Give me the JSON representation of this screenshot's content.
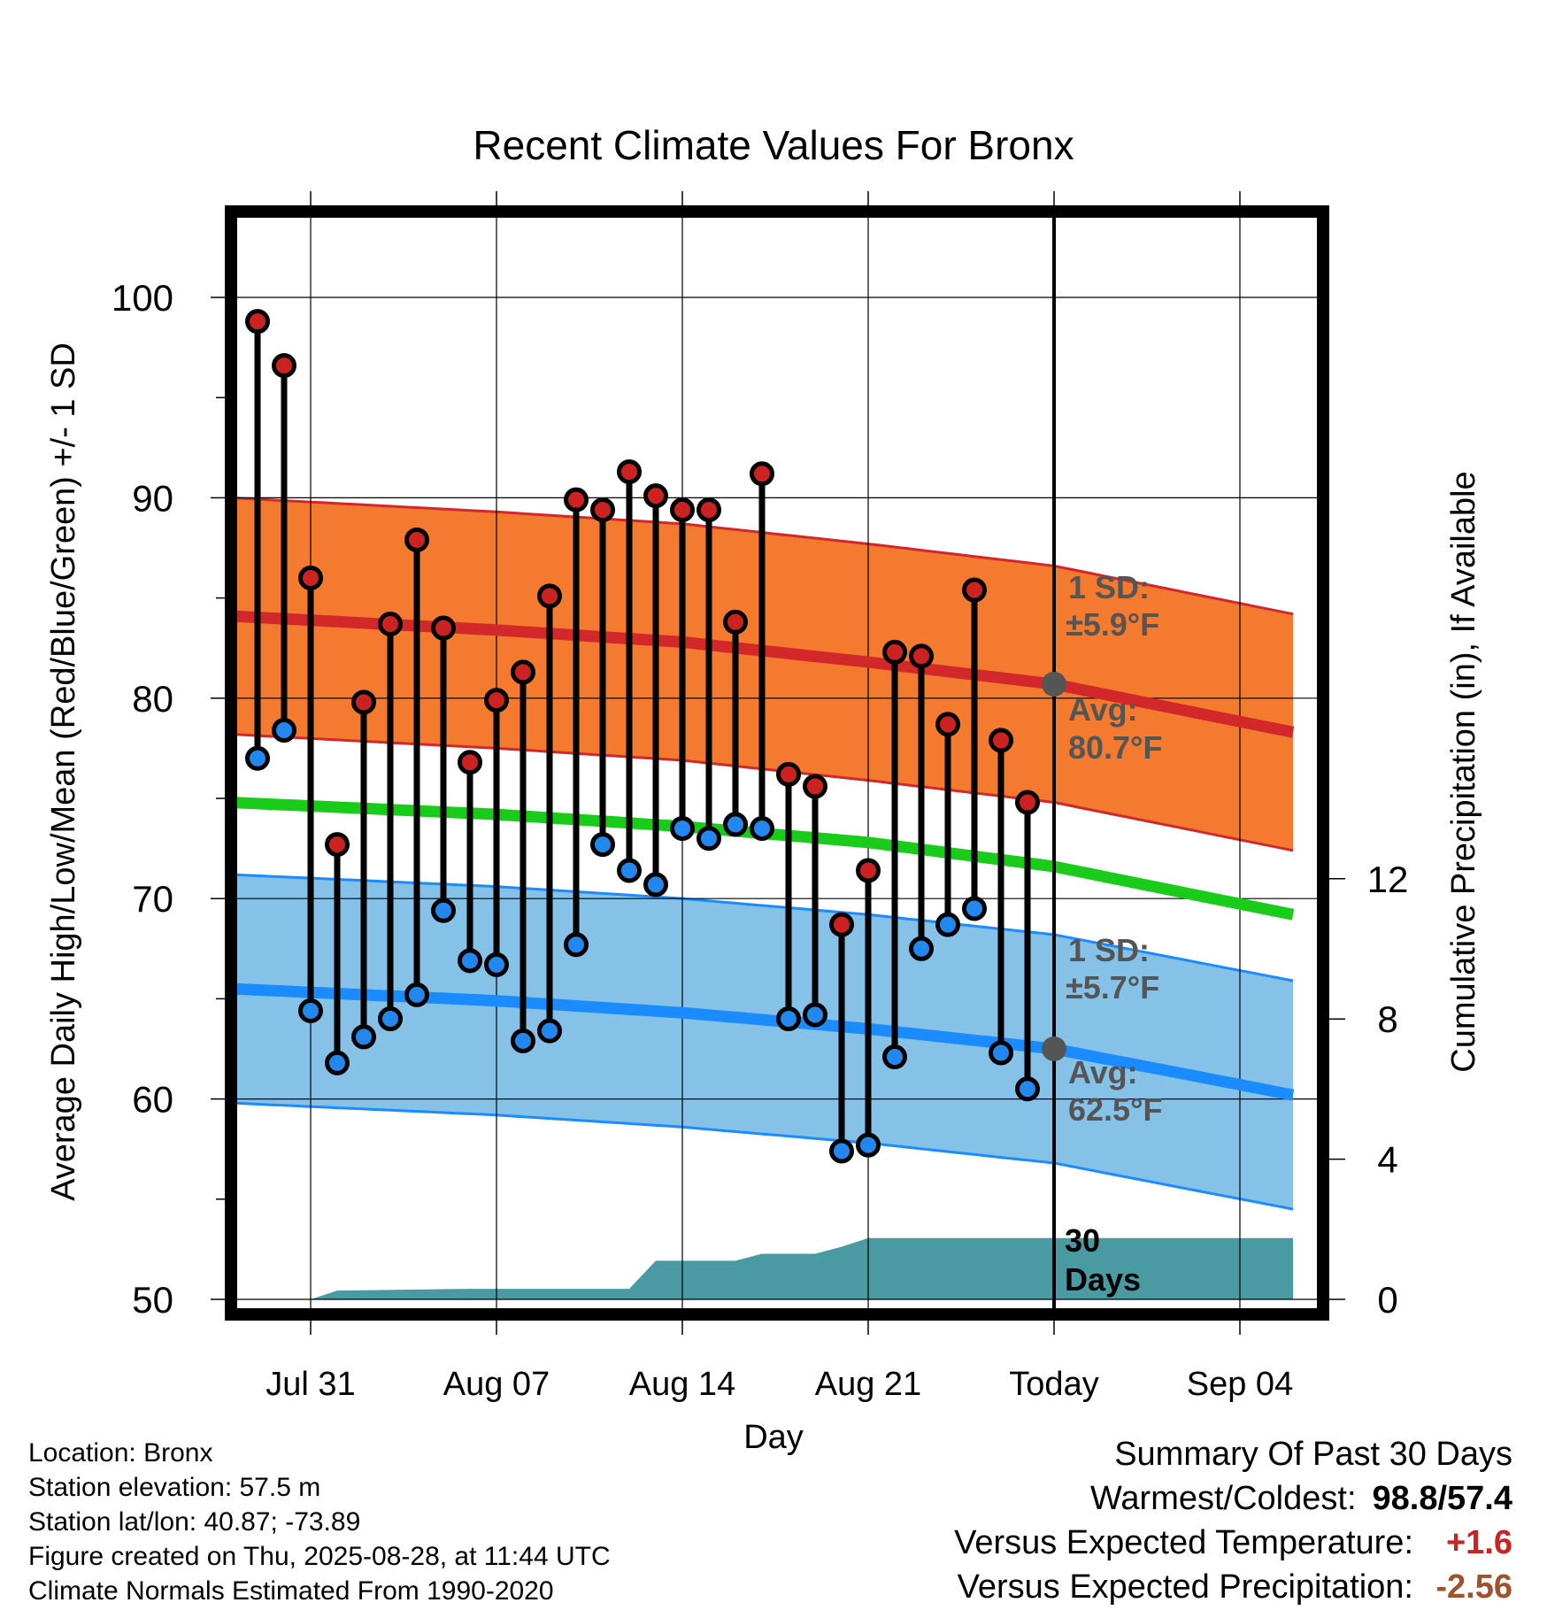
{
  "chart_data": {
    "type": "line",
    "title": "Recent Climate Values For Bronx",
    "xlabel": "Day",
    "ylabel": "Average Daily High/Low/Mean (Red/Blue/Green) +/- 1 SD",
    "y2label": "Cumulative Precipitation (in), If Available",
    "ylim": [
      50,
      100
    ],
    "yticks": [
      50,
      60,
      70,
      80,
      90,
      100
    ],
    "y2ticks": [
      0,
      4,
      8,
      12
    ],
    "x_tick_labels": [
      "Jul 31",
      "Aug 07",
      "Aug 14",
      "Aug 21",
      "Today",
      "Sep 04"
    ],
    "grid": true,
    "x_range_days": [
      "Jul 28",
      "Sep 06"
    ],
    "days": [
      "Jul 29",
      "Jul 30",
      "Jul 31",
      "Aug 01",
      "Aug 02",
      "Aug 03",
      "Aug 04",
      "Aug 05",
      "Aug 06",
      "Aug 07",
      "Aug 08",
      "Aug 09",
      "Aug 10",
      "Aug 11",
      "Aug 12",
      "Aug 13",
      "Aug 14",
      "Aug 15",
      "Aug 16",
      "Aug 17",
      "Aug 18",
      "Aug 19",
      "Aug 20",
      "Aug 21",
      "Aug 22",
      "Aug 23",
      "Aug 24",
      "Aug 25",
      "Aug 26",
      "Aug 27"
    ],
    "daily_high": [
      98.8,
      96.6,
      86.0,
      72.7,
      79.8,
      83.7,
      87.9,
      83.5,
      76.8,
      79.9,
      81.3,
      85.1,
      89.9,
      89.4,
      91.3,
      90.1,
      89.4,
      89.4,
      83.8,
      91.2,
      76.2,
      75.6,
      68.7,
      71.4,
      82.3,
      82.1,
      78.7,
      85.4,
      77.9,
      74.8
    ],
    "daily_low": [
      77.0,
      78.4,
      64.4,
      61.8,
      63.1,
      64.0,
      65.2,
      69.4,
      66.9,
      66.7,
      62.9,
      63.4,
      67.7,
      72.7,
      71.4,
      70.7,
      73.5,
      73.0,
      73.7,
      73.5,
      64.0,
      64.2,
      57.4,
      57.7,
      62.1,
      67.5,
      68.7,
      69.5,
      62.3,
      60.5
    ],
    "normal_high": {
      "days": [
        "Jul 28",
        "Aug 07",
        "Aug 14",
        "Aug 21",
        "Aug 28",
        "Sep 06"
      ],
      "values": [
        84.1,
        83.4,
        82.8,
        81.8,
        80.7,
        78.3
      ]
    },
    "normal_low": {
      "days": [
        "Jul 28",
        "Aug 07",
        "Aug 14",
        "Aug 21",
        "Aug 28",
        "Sep 06"
      ],
      "values": [
        65.5,
        64.9,
        64.3,
        63.5,
        62.5,
        60.2
      ]
    },
    "normal_mean": {
      "days": [
        "Jul 28",
        "Aug 07",
        "Aug 14",
        "Aug 21",
        "Aug 28",
        "Sep 06"
      ],
      "values": [
        74.8,
        74.2,
        73.6,
        72.8,
        71.6,
        69.2
      ]
    },
    "sd_high": 5.9,
    "sd_low": 5.7,
    "cumulative_precip": {
      "days": [
        "Jul 28",
        "Jul 31",
        "Aug 01",
        "Aug 06",
        "Aug 12",
        "Aug 13",
        "Aug 16",
        "Aug 17",
        "Aug 19",
        "Aug 20",
        "Aug 21",
        "Aug 28",
        "Sep 06"
      ],
      "values": [
        0,
        0,
        0.25,
        0.3,
        0.3,
        1.1,
        1.1,
        1.3,
        1.3,
        1.5,
        1.75,
        1.75,
        1.75
      ]
    },
    "colors": {
      "high_band": "#f47a30",
      "high_line": "#d2282a",
      "low_band": "#86c2e8",
      "low_line": "#1a8cff",
      "mean_line": "#19cc1a",
      "precip": "#4a9aa4",
      "high_marker": "#cc2222",
      "low_marker": "#2288ee",
      "annotation": "#555555"
    },
    "annotations": {
      "high_sd_label": "1 SD:",
      "high_sd_value": "±5.9°F",
      "high_avg_label": "Avg:",
      "high_avg_value": "80.7°F",
      "low_sd_label": "1 SD:",
      "low_sd_value": "±5.7°F",
      "low_avg_label": "Avg:",
      "low_avg_value": "62.5°F",
      "period_count": "30",
      "period_unit": "Days"
    }
  },
  "info": {
    "location": "Location: Bronx",
    "elevation": "Station elevation: 57.5 m",
    "latlon": "Station lat/lon: 40.87; -73.89",
    "created": "Figure created on Thu, 2025-08-28, at 11:44 UTC",
    "normals": "Climate Normals Estimated From 1990-2020"
  },
  "summary": {
    "heading": "Summary Of Past 30 Days",
    "warm_cold_label": "Warmest/Coldest:",
    "warm_cold_value": "98.8/57.4",
    "temp_label": "Versus Expected Temperature:",
    "temp_value": "+1.6",
    "temp_color": "#cc2222",
    "precip_label": "Versus Expected Precipitation:",
    "precip_value": "-2.56",
    "precip_color": "#a0522d"
  }
}
